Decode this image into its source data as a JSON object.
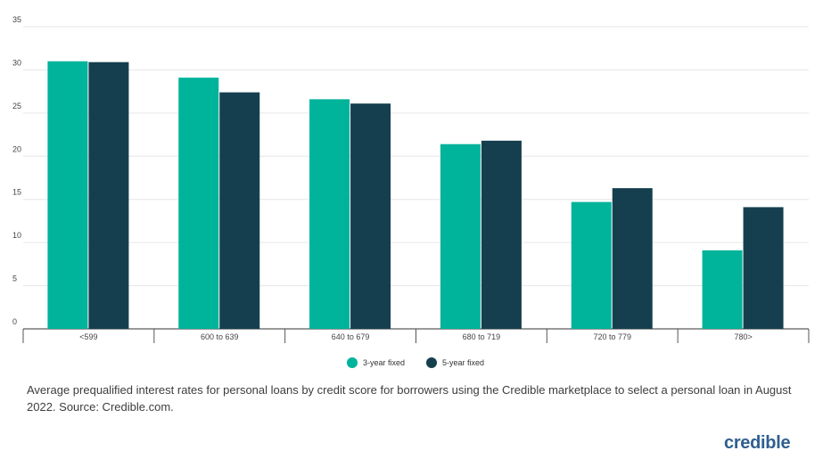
{
  "chart_data": {
    "type": "bar",
    "categories": [
      "<599",
      "600 to 639",
      "640 to 679",
      "680 to 719",
      "720 to 779",
      "780>"
    ],
    "series": [
      {
        "name": "3-year fixed",
        "color": "#00b39b",
        "values": [
          31.0,
          29.1,
          26.6,
          21.4,
          14.7,
          9.1
        ]
      },
      {
        "name": "5-year fixed",
        "color": "#153f4e",
        "values": [
          30.9,
          27.4,
          26.1,
          21.8,
          16.3,
          14.1
        ]
      }
    ],
    "ylim": [
      0,
      35
    ],
    "yticks": [
      0,
      5,
      10,
      15,
      20,
      25,
      30,
      35
    ],
    "grid": true,
    "legend": "bottom-center",
    "xlabel": "",
    "ylabel": ""
  },
  "caption": "Average prequalified interest rates for personal loans by credit score for borrowers using the Credible marketplace to select a personal loan in August 2022. Source: Credible.com.",
  "brand": "credible"
}
